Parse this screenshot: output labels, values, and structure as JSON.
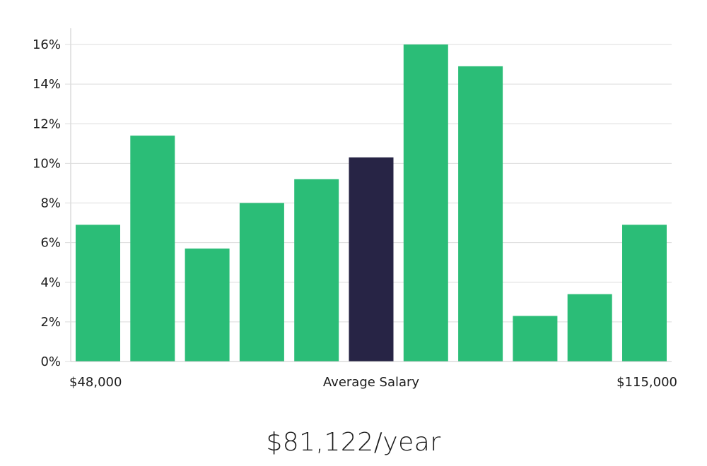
{
  "chart_data": {
    "type": "bar",
    "title": "",
    "xlabel": "Average Salary",
    "ylabel": "",
    "ylim": [
      0,
      16
    ],
    "y_ticks": [
      0,
      2,
      4,
      6,
      8,
      10,
      12,
      14,
      16
    ],
    "y_tick_format": "%",
    "grid": true,
    "x_start_label": "$48,000",
    "x_end_label": "$115,000",
    "values": [
      6.9,
      11.4,
      5.7,
      8.0,
      9.2,
      10.3,
      16.0,
      14.9,
      2.3,
      3.4,
      6.9
    ],
    "highlight_index": 5,
    "colors": {
      "bar": "#2bbd77",
      "highlight": "#272445"
    }
  },
  "caption": "$81,122/year"
}
